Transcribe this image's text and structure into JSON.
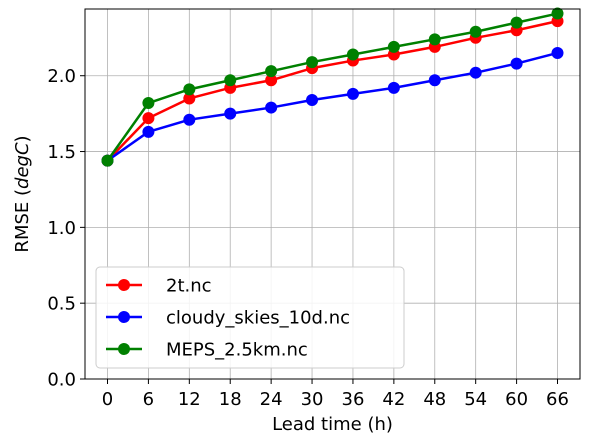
{
  "chart_data": {
    "type": "line",
    "xlabel": "Lead time (h)",
    "ylabel": {
      "prefix": "RMSE (",
      "unit": "degC",
      "suffix": ")"
    },
    "x": [
      0,
      6,
      12,
      18,
      24,
      30,
      36,
      42,
      48,
      54,
      60,
      66
    ],
    "xticks": [
      "0",
      "6",
      "12",
      "18",
      "24",
      "30",
      "36",
      "42",
      "48",
      "54",
      "60",
      "66"
    ],
    "yticks": [
      "0.0",
      "0.5",
      "1.0",
      "1.5",
      "2.0"
    ],
    "ytick_values": [
      0.0,
      0.5,
      1.0,
      1.5,
      2.0
    ],
    "xlim": [
      -3.3,
      69.3
    ],
    "ylim": [
      0.0,
      2.44
    ],
    "grid": true,
    "legend_position": "lower-left",
    "series": [
      {
        "name": "2t.nc",
        "color": "#ff0000",
        "values": [
          1.44,
          1.72,
          1.85,
          1.92,
          1.97,
          2.05,
          2.1,
          2.14,
          2.19,
          2.25,
          2.3,
          2.36
        ]
      },
      {
        "name": "cloudy_skies_10d.nc",
        "color": "#0000ff",
        "values": [
          1.44,
          1.63,
          1.71,
          1.75,
          1.79,
          1.84,
          1.88,
          1.92,
          1.97,
          2.02,
          2.08,
          2.15
        ]
      },
      {
        "name": "MEPS_2.5km.nc",
        "color": "#008000",
        "values": [
          1.44,
          1.82,
          1.91,
          1.97,
          2.03,
          2.09,
          2.14,
          2.19,
          2.24,
          2.29,
          2.35,
          2.41
        ]
      }
    ]
  }
}
